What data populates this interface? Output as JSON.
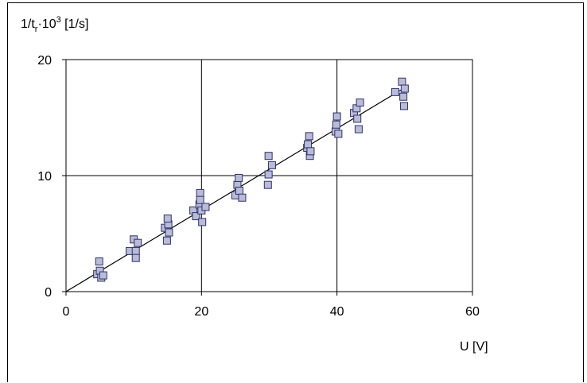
{
  "chart_data": {
    "type": "scatter",
    "ylabel": "1/t_r·10³ [1/s]",
    "ylabel_parts": {
      "pre": "1/t",
      "sub": "r",
      "mid": "·10",
      "sup": "3",
      "post": " [1/s]"
    },
    "xlabel": "U [V]",
    "xlim": [
      0,
      60
    ],
    "ylim": [
      0,
      20
    ],
    "x_ticks": [
      0,
      20,
      40,
      60
    ],
    "y_ticks": [
      0,
      10,
      20
    ],
    "x_tick_labels": [
      "0",
      "20",
      "40",
      "60"
    ],
    "y_tick_labels": [
      "0",
      "10",
      "20"
    ],
    "grid": true,
    "marker_fill": "#b8bcd8",
    "marker_stroke": "#30306a",
    "fit_line": {
      "x": [
        0,
        49.5
      ],
      "y": [
        0,
        17.4
      ]
    },
    "points": [
      {
        "x": 4.6,
        "y": 1.5
      },
      {
        "x": 4.9,
        "y": 2.6
      },
      {
        "x": 5.0,
        "y": 1.8
      },
      {
        "x": 5.2,
        "y": 1.2
      },
      {
        "x": 5.5,
        "y": 1.4
      },
      {
        "x": 9.4,
        "y": 3.5
      },
      {
        "x": 10.0,
        "y": 4.5
      },
      {
        "x": 10.3,
        "y": 3.5
      },
      {
        "x": 10.3,
        "y": 2.9
      },
      {
        "x": 10.6,
        "y": 4.2
      },
      {
        "x": 14.6,
        "y": 5.5
      },
      {
        "x": 14.9,
        "y": 4.4
      },
      {
        "x": 15.1,
        "y": 5.8
      },
      {
        "x": 15.0,
        "y": 6.3
      },
      {
        "x": 15.2,
        "y": 5.1
      },
      {
        "x": 18.8,
        "y": 7.0
      },
      {
        "x": 19.2,
        "y": 6.5
      },
      {
        "x": 19.7,
        "y": 7.5
      },
      {
        "x": 19.8,
        "y": 8.5
      },
      {
        "x": 19.8,
        "y": 7.9
      },
      {
        "x": 20.0,
        "y": 7.0
      },
      {
        "x": 20.1,
        "y": 6.0
      },
      {
        "x": 20.6,
        "y": 7.3
      },
      {
        "x": 25.0,
        "y": 8.3
      },
      {
        "x": 25.3,
        "y": 9.2
      },
      {
        "x": 25.5,
        "y": 9.8
      },
      {
        "x": 25.6,
        "y": 8.7
      },
      {
        "x": 26.0,
        "y": 8.1
      },
      {
        "x": 29.8,
        "y": 9.2
      },
      {
        "x": 29.9,
        "y": 10.1
      },
      {
        "x": 29.9,
        "y": 11.7
      },
      {
        "x": 30.4,
        "y": 10.9
      },
      {
        "x": 35.6,
        "y": 12.4
      },
      {
        "x": 35.7,
        "y": 12.7
      },
      {
        "x": 35.9,
        "y": 13.4
      },
      {
        "x": 36.0,
        "y": 11.7
      },
      {
        "x": 36.1,
        "y": 12.1
      },
      {
        "x": 39.8,
        "y": 13.8
      },
      {
        "x": 39.9,
        "y": 14.4
      },
      {
        "x": 40.0,
        "y": 15.1
      },
      {
        "x": 40.2,
        "y": 13.6
      },
      {
        "x": 42.5,
        "y": 15.4
      },
      {
        "x": 42.9,
        "y": 15.8
      },
      {
        "x": 43.0,
        "y": 14.9
      },
      {
        "x": 43.2,
        "y": 14.0
      },
      {
        "x": 43.4,
        "y": 16.3
      },
      {
        "x": 48.6,
        "y": 17.2
      },
      {
        "x": 49.6,
        "y": 18.1
      },
      {
        "x": 49.8,
        "y": 16.8
      },
      {
        "x": 49.9,
        "y": 16.0
      },
      {
        "x": 50.0,
        "y": 17.5
      }
    ]
  }
}
